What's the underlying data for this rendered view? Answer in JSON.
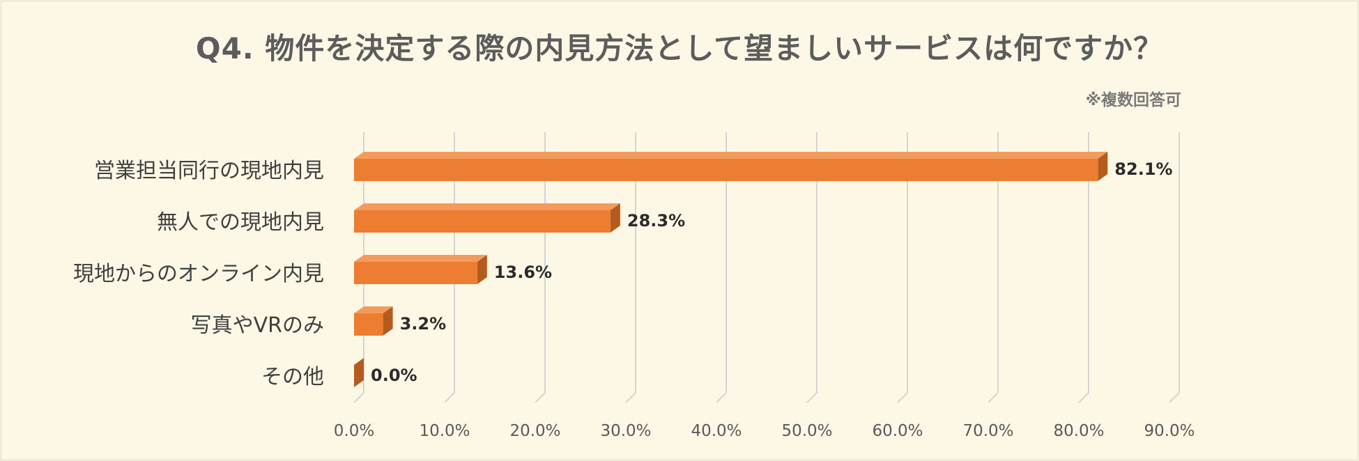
{
  "chart_data": {
    "type": "bar",
    "orientation": "horizontal",
    "title": "Q4. 物件を決定する際の内見方法として望ましいサービスは何ですか？",
    "note": "※複数回答可",
    "categories": [
      "営業担当同行の現地内見",
      "無人での現地内見",
      "現地からのオンライン内見",
      "写真やVRのみ",
      "その他"
    ],
    "values": [
      82.1,
      28.3,
      13.6,
      3.2,
      0.0
    ],
    "value_labels": [
      "82.1%",
      "28.3%",
      "13.6%",
      "3.2%",
      "0.0%"
    ],
    "xlim": [
      0,
      90
    ],
    "ticks": [
      "0.0%",
      "10.0%",
      "20.0%",
      "30.0%",
      "40.0%",
      "50.0%",
      "60.0%",
      "70.0%",
      "80.0%",
      "90.0%"
    ],
    "grid": true,
    "bar_color": "#ed7d31",
    "bar_top_color": "#f39b5c",
    "bar_side_color": "#b45c20",
    "gridline_color": "#d4d4d4"
  }
}
